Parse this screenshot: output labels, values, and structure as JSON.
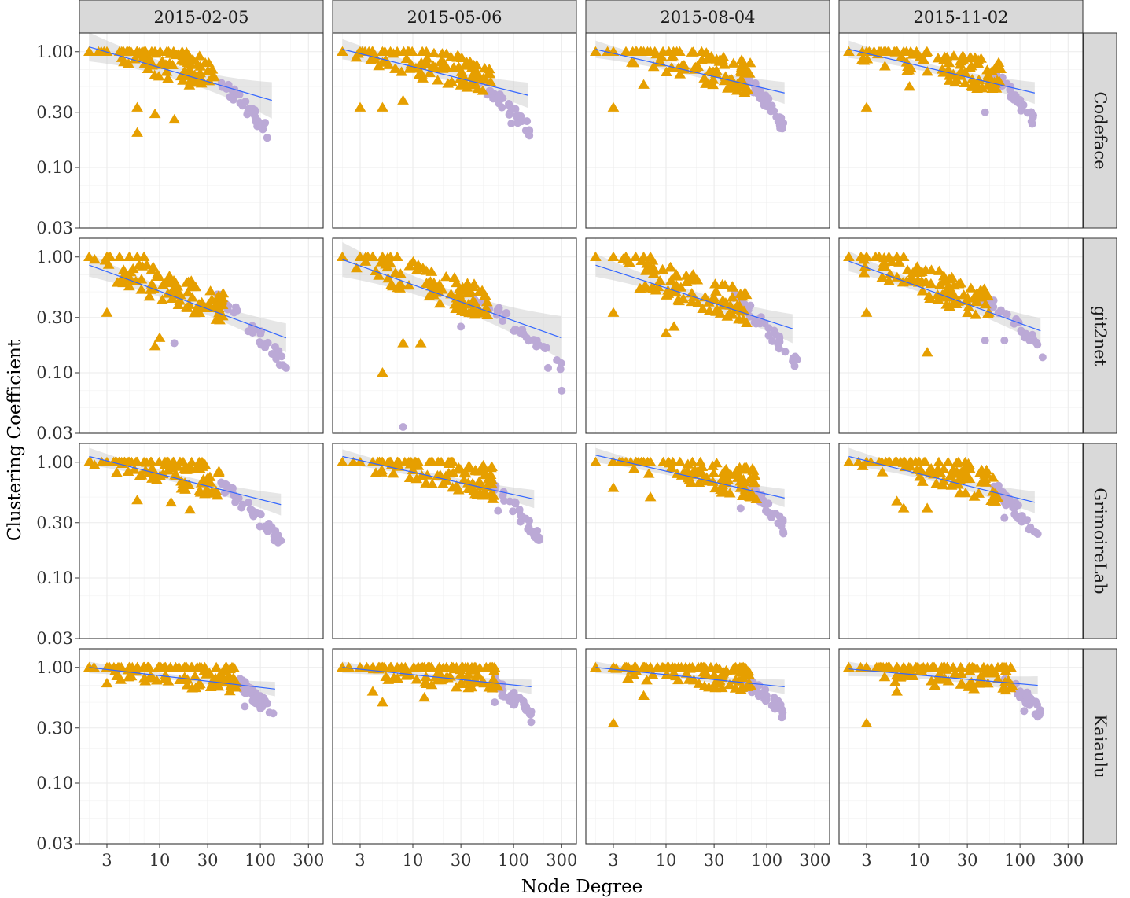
{
  "chart_data": {
    "type": "scatter",
    "facet_columns": [
      "2015-02-05",
      "2015-05-06",
      "2015-08-04",
      "2015-11-02"
    ],
    "facet_rows": [
      "Codeface",
      "git2net",
      "GrimoireLab",
      "Kaiaulu"
    ],
    "xlabel": "Node Degree",
    "ylabel": "Clustering Coefficient",
    "x_scale": "log10",
    "y_scale": "log10",
    "xlim": [
      1.6,
      420
    ],
    "ylim": [
      0.03,
      1.45
    ],
    "x_ticks": [
      3,
      10,
      30,
      100,
      300
    ],
    "x_tick_labels": [
      "3",
      "10",
      "30",
      "100",
      "300"
    ],
    "y_ticks": [
      0.03,
      0.1,
      0.3,
      1.0
    ],
    "y_tick_labels": [
      "0.03",
      "0.10",
      "0.30",
      "1.00"
    ],
    "grid": true,
    "legend": "none",
    "colors": {
      "triangle_series": "#E69F00",
      "circle_series": "#BBA9D6",
      "fit_line": "#3366FF",
      "ribbon": "#C8C8C8",
      "strip": "#D9D9D9"
    },
    "panels": [
      {
        "row": "Codeface",
        "col": "2015-02-05",
        "fit": [
          [
            2,
            1.1
          ],
          [
            130,
            0.38
          ]
        ],
        "ribbon": 0.1,
        "tri_max": 35,
        "circ_range": [
          40,
          120
        ],
        "circ_y": [
          0.2,
          0.52
        ],
        "tri_outliers": [
          [
            6,
            0.2
          ],
          [
            9,
            0.29
          ],
          [
            14,
            0.26
          ],
          [
            6,
            0.33
          ]
        ],
        "circ_outliers": [
          [
            90,
            0.25
          ],
          [
            100,
            0.24
          ]
        ]
      },
      {
        "row": "Codeface",
        "col": "2015-05-06",
        "fit": [
          [
            2,
            1.05
          ],
          [
            140,
            0.42
          ]
        ],
        "ribbon": 0.07,
        "tri_max": 60,
        "circ_range": [
          45,
          150
        ],
        "circ_y": [
          0.2,
          0.55
        ],
        "tri_outliers": [
          [
            3,
            0.33
          ],
          [
            5,
            0.33
          ],
          [
            8,
            0.38
          ]
        ],
        "circ_outliers": [
          [
            140,
            0.2
          ],
          [
            95,
            0.24
          ]
        ]
      },
      {
        "row": "Codeface",
        "col": "2015-08-04",
        "fit": [
          [
            2,
            1.05
          ],
          [
            150,
            0.44
          ]
        ],
        "ribbon": 0.06,
        "tri_max": 70,
        "circ_range": [
          60,
          150
        ],
        "circ_y": [
          0.22,
          0.6
        ],
        "tri_outliers": [
          [
            3,
            0.33
          ],
          [
            6,
            0.52
          ]
        ],
        "circ_outliers": [
          [
            140,
            0.22
          ],
          [
            130,
            0.25
          ]
        ]
      },
      {
        "row": "Codeface",
        "col": "2015-11-02",
        "fit": [
          [
            2,
            1.05
          ],
          [
            140,
            0.44
          ]
        ],
        "ribbon": 0.06,
        "tri_max": 65,
        "circ_range": [
          55,
          140
        ],
        "circ_y": [
          0.25,
          0.6
        ],
        "tri_outliers": [
          [
            3,
            0.33
          ],
          [
            8,
            0.5
          ]
        ],
        "circ_outliers": [
          [
            45,
            0.3
          ],
          [
            130,
            0.25
          ]
        ]
      },
      {
        "row": "git2net",
        "col": "2015-02-05",
        "fit": [
          [
            2,
            0.85
          ],
          [
            180,
            0.2
          ]
        ],
        "ribbon": 0.08,
        "tri_max": 45,
        "circ_range": [
          35,
          190
        ],
        "circ_y": [
          0.11,
          0.45
        ],
        "tri_outliers": [
          [
            9,
            0.17
          ],
          [
            3,
            0.33
          ],
          [
            10,
            0.2
          ]
        ],
        "circ_outliers": [
          [
            14,
            0.18
          ],
          [
            180,
            0.11
          ]
        ]
      },
      {
        "row": "git2net",
        "col": "2015-05-06",
        "fit": [
          [
            2,
            0.95
          ],
          [
            300,
            0.2
          ]
        ],
        "ribbon": 0.12,
        "tri_max": 55,
        "circ_range": [
          40,
          300
        ],
        "circ_y": [
          0.11,
          0.45
        ],
        "tri_outliers": [
          [
            5,
            0.1
          ],
          [
            8,
            0.18
          ],
          [
            12,
            0.18
          ]
        ],
        "circ_outliers": [
          [
            8,
            0.034
          ],
          [
            300,
            0.07
          ],
          [
            220,
            0.11
          ],
          [
            30,
            0.25
          ]
        ]
      },
      {
        "row": "git2net",
        "col": "2015-08-04",
        "fit": [
          [
            2,
            0.85
          ],
          [
            180,
            0.24
          ]
        ],
        "ribbon": 0.08,
        "tri_max": 65,
        "circ_range": [
          45,
          200
        ],
        "circ_y": [
          0.12,
          0.45
        ],
        "tri_outliers": [
          [
            10,
            0.22
          ],
          [
            12,
            0.25
          ],
          [
            3,
            0.33
          ]
        ],
        "circ_outliers": [
          [
            200,
            0.13
          ]
        ]
      },
      {
        "row": "git2net",
        "col": "2015-11-02",
        "fit": [
          [
            2,
            0.92
          ],
          [
            160,
            0.23
          ]
        ],
        "ribbon": 0.07,
        "tri_max": 50,
        "circ_range": [
          40,
          170
        ],
        "circ_y": [
          0.15,
          0.45
        ],
        "tri_outliers": [
          [
            12,
            0.15
          ],
          [
            3,
            0.33
          ]
        ],
        "circ_outliers": [
          [
            45,
            0.19
          ],
          [
            70,
            0.19
          ]
        ]
      },
      {
        "row": "GrimoireLab",
        "col": "2015-02-05",
        "fit": [
          [
            2,
            1.12
          ],
          [
            160,
            0.43
          ]
        ],
        "ribbon": 0.06,
        "tri_max": 40,
        "circ_range": [
          40,
          160
        ],
        "circ_y": [
          0.2,
          0.62
        ],
        "tri_outliers": [
          [
            6,
            0.47
          ],
          [
            20,
            0.39
          ],
          [
            13,
            0.45
          ]
        ],
        "circ_outliers": [
          [
            160,
            0.21
          ],
          [
            140,
            0.25
          ]
        ]
      },
      {
        "row": "GrimoireLab",
        "col": "2015-05-06",
        "fit": [
          [
            2,
            1.12
          ],
          [
            160,
            0.48
          ]
        ],
        "ribbon": 0.05,
        "tri_max": 65,
        "circ_range": [
          60,
          180
        ],
        "circ_y": [
          0.22,
          0.62
        ],
        "tri_outliers": [],
        "circ_outliers": [
          [
            180,
            0.22
          ],
          [
            160,
            0.25
          ],
          [
            70,
            0.38
          ]
        ]
      },
      {
        "row": "GrimoireLab",
        "col": "2015-08-04",
        "fit": [
          [
            2,
            1.15
          ],
          [
            150,
            0.49
          ]
        ],
        "ribbon": 0.05,
        "tri_max": 80,
        "circ_range": [
          60,
          150
        ],
        "circ_y": [
          0.27,
          0.62
        ],
        "tri_outliers": [
          [
            7,
            0.5
          ],
          [
            3,
            0.6
          ]
        ],
        "circ_outliers": [
          [
            55,
            0.4
          ]
        ]
      },
      {
        "row": "GrimoireLab",
        "col": "2015-11-02",
        "fit": [
          [
            2,
            1.12
          ],
          [
            140,
            0.45
          ]
        ],
        "ribbon": 0.06,
        "tri_max": 60,
        "circ_range": [
          50,
          150
        ],
        "circ_y": [
          0.24,
          0.62
        ],
        "tri_outliers": [
          [
            7,
            0.4
          ],
          [
            6,
            0.46
          ],
          [
            12,
            0.4
          ]
        ],
        "circ_outliers": [
          [
            70,
            0.33
          ],
          [
            150,
            0.24
          ]
        ]
      },
      {
        "row": "Kaiaulu",
        "col": "2015-02-05",
        "fit": [
          [
            2,
            1.0
          ],
          [
            140,
            0.65
          ]
        ],
        "ribbon": 0.04,
        "tri_max": 60,
        "circ_range": [
          60,
          140
        ],
        "circ_y": [
          0.38,
          0.72
        ],
        "tri_outliers": [
          [
            3,
            0.73
          ]
        ],
        "circ_outliers": [
          [
            70,
            0.46
          ]
        ]
      },
      {
        "row": "Kaiaulu",
        "col": "2015-05-06",
        "fit": [
          [
            2,
            1.0
          ],
          [
            150,
            0.68
          ]
        ],
        "ribbon": 0.04,
        "tri_max": 70,
        "circ_range": [
          60,
          150
        ],
        "circ_y": [
          0.38,
          0.75
        ],
        "tri_outliers": [
          [
            5,
            0.5
          ],
          [
            4,
            0.62
          ],
          [
            13,
            0.55
          ]
        ],
        "circ_outliers": [
          [
            65,
            0.5
          ]
        ]
      },
      {
        "row": "Kaiaulu",
        "col": "2015-08-04",
        "fit": [
          [
            2,
            1.0
          ],
          [
            150,
            0.68
          ]
        ],
        "ribbon": 0.04,
        "tri_max": 70,
        "circ_range": [
          60,
          150
        ],
        "circ_y": [
          0.4,
          0.75
        ],
        "tri_outliers": [
          [
            3,
            0.33
          ],
          [
            6,
            0.57
          ]
        ],
        "circ_outliers": []
      },
      {
        "row": "Kaiaulu",
        "col": "2015-11-02",
        "fit": [
          [
            2,
            0.97
          ],
          [
            150,
            0.7
          ]
        ],
        "ribbon": 0.05,
        "tri_max": 85,
        "circ_range": [
          70,
          160
        ],
        "circ_y": [
          0.4,
          0.8
        ],
        "tri_outliers": [
          [
            3,
            0.33
          ],
          [
            6,
            0.62
          ]
        ],
        "circ_outliers": [
          [
            110,
            0.42
          ]
        ]
      }
    ]
  }
}
